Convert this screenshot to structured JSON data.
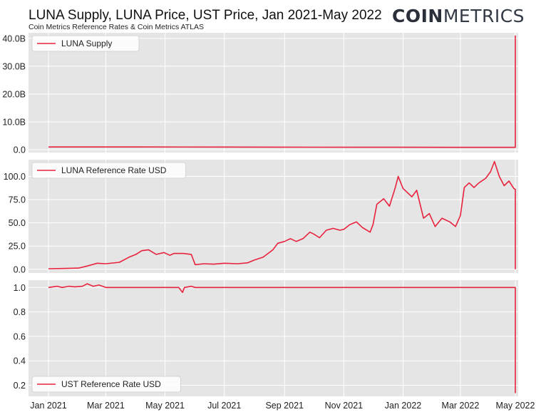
{
  "header": {
    "title": "LUNA Supply, LUNA Price, UST Price, Jan 2021-May 2022",
    "subtitle": "Coin Metrics Reference Rates & Coin Metrics ATLAS",
    "logo_bold": "COIN",
    "logo_light": "METRICS"
  },
  "colors": {
    "series": "#e8223d",
    "panel_bg": "#e5e5e5",
    "grid": "#ffffff",
    "text": "#222222"
  },
  "chart_data": {
    "type": "line",
    "x_range": [
      "2021-01-01",
      "2022-05-20"
    ],
    "x_ticks": [
      {
        "date": "2021-01-01",
        "label": "Jan 2021"
      },
      {
        "date": "2021-03-01",
        "label": "Mar 2021"
      },
      {
        "date": "2021-05-01",
        "label": "May 2021"
      },
      {
        "date": "2021-07-01",
        "label": "Jul 2021"
      },
      {
        "date": "2021-09-01",
        "label": "Sep 2021"
      },
      {
        "date": "2021-11-01",
        "label": "Nov 2021"
      },
      {
        "date": "2022-01-01",
        "label": "Jan 2022"
      },
      {
        "date": "2022-03-01",
        "label": "Mar 2022"
      },
      {
        "date": "2022-05-01",
        "label": "May 2022"
      }
    ],
    "grid": true,
    "panels": [
      {
        "series_name": "LUNA Supply",
        "legend_position": "top-left",
        "ylim": [
          -1000000000,
          42000000000
        ],
        "yticks": [
          {
            "value": 0,
            "label": "0.0"
          },
          {
            "value": 10000000000,
            "label": "10.0B"
          },
          {
            "value": 20000000000,
            "label": "20.0B"
          },
          {
            "value": 30000000000,
            "label": "30.0B"
          },
          {
            "value": 40000000000,
            "label": "40.0B"
          }
        ],
        "points": [
          [
            "2021-01-01",
            1000000000
          ],
          [
            "2021-04-01",
            990000000
          ],
          [
            "2021-07-01",
            960000000
          ],
          [
            "2021-10-01",
            930000000
          ],
          [
            "2022-01-01",
            900000000
          ],
          [
            "2022-03-01",
            870000000
          ],
          [
            "2022-04-01",
            860000000
          ],
          [
            "2022-05-01",
            860000000
          ],
          [
            "2022-05-08",
            870000000
          ],
          [
            "2022-05-10",
            1000000000
          ],
          [
            "2022-05-11",
            2500000000
          ],
          [
            "2022-05-12",
            6000000000
          ],
          [
            "2022-05-13",
            41000000000
          ]
        ]
      },
      {
        "series_name": "LUNA Reference Rate USD",
        "legend_position": "top-left",
        "ylim": [
          -4,
          118
        ],
        "yticks": [
          {
            "value": 0,
            "label": "0.0"
          },
          {
            "value": 25,
            "label": "25.0"
          },
          {
            "value": 50,
            "label": "50.0"
          },
          {
            "value": 75,
            "label": "75.0"
          },
          {
            "value": 100,
            "label": "100.0"
          }
        ],
        "points": [
          [
            "2021-01-01",
            0.6
          ],
          [
            "2021-01-15",
            0.8
          ],
          [
            "2021-02-01",
            1.3
          ],
          [
            "2021-02-10",
            3.5
          ],
          [
            "2021-02-20",
            6.5
          ],
          [
            "2021-03-01",
            6
          ],
          [
            "2021-03-15",
            7.5
          ],
          [
            "2021-03-25",
            13
          ],
          [
            "2021-04-01",
            16
          ],
          [
            "2021-04-07",
            20
          ],
          [
            "2021-04-14",
            21
          ],
          [
            "2021-04-22",
            16
          ],
          [
            "2021-04-30",
            18
          ],
          [
            "2021-05-06",
            15
          ],
          [
            "2021-05-10",
            17
          ],
          [
            "2021-05-20",
            17
          ],
          [
            "2021-05-28",
            16
          ],
          [
            "2021-06-01",
            5
          ],
          [
            "2021-06-10",
            6
          ],
          [
            "2021-06-20",
            5.5
          ],
          [
            "2021-07-01",
            6.5
          ],
          [
            "2021-07-15",
            6
          ],
          [
            "2021-07-25",
            7
          ],
          [
            "2021-08-01",
            10
          ],
          [
            "2021-08-10",
            13
          ],
          [
            "2021-08-20",
            21
          ],
          [
            "2021-08-25",
            28
          ],
          [
            "2021-09-01",
            30
          ],
          [
            "2021-09-07",
            33
          ],
          [
            "2021-09-13",
            30
          ],
          [
            "2021-09-20",
            33
          ],
          [
            "2021-09-27",
            40
          ],
          [
            "2021-10-01",
            38
          ],
          [
            "2021-10-07",
            34
          ],
          [
            "2021-10-14",
            42
          ],
          [
            "2021-10-21",
            44
          ],
          [
            "2021-10-28",
            42
          ],
          [
            "2021-11-01",
            43
          ],
          [
            "2021-11-07",
            48
          ],
          [
            "2021-11-14",
            51
          ],
          [
            "2021-11-20",
            45
          ],
          [
            "2021-11-28",
            40
          ],
          [
            "2021-12-01",
            48
          ],
          [
            "2021-12-05",
            70
          ],
          [
            "2021-12-12",
            76
          ],
          [
            "2021-12-18",
            68
          ],
          [
            "2021-12-24",
            88
          ],
          [
            "2021-12-27",
            100
          ],
          [
            "2022-01-01",
            87
          ],
          [
            "2022-01-10",
            78
          ],
          [
            "2022-01-15",
            85
          ],
          [
            "2022-01-22",
            55
          ],
          [
            "2022-01-28",
            60
          ],
          [
            "2022-02-03",
            46
          ],
          [
            "2022-02-10",
            55
          ],
          [
            "2022-02-18",
            51
          ],
          [
            "2022-02-24",
            46
          ],
          [
            "2022-03-01",
            58
          ],
          [
            "2022-03-05",
            88
          ],
          [
            "2022-03-10",
            93
          ],
          [
            "2022-03-15",
            88
          ],
          [
            "2022-03-20",
            93
          ],
          [
            "2022-03-27",
            98
          ],
          [
            "2022-04-01",
            105
          ],
          [
            "2022-04-05",
            116
          ],
          [
            "2022-04-10",
            100
          ],
          [
            "2022-04-15",
            90
          ],
          [
            "2022-04-20",
            95
          ],
          [
            "2022-04-25",
            87
          ],
          [
            "2022-04-30",
            86
          ],
          [
            "2022-05-04",
            82
          ],
          [
            "2022-05-07",
            74
          ],
          [
            "2022-05-09",
            30
          ],
          [
            "2022-05-11",
            3
          ],
          [
            "2022-05-13",
            0.1
          ],
          [
            "2022-05-16",
            0.1
          ]
        ]
      },
      {
        "series_name": "UST Reference Rate USD",
        "legend_position": "bottom-left",
        "ylim": [
          0.11,
          1.06
        ],
        "yticks": [
          {
            "value": 0.2,
            "label": "0.2"
          },
          {
            "value": 0.4,
            "label": "0.4"
          },
          {
            "value": 0.6,
            "label": "0.6"
          },
          {
            "value": 0.8,
            "label": "0.8"
          },
          {
            "value": 1.0,
            "label": "1.0"
          }
        ],
        "points": [
          [
            "2021-01-01",
            1.0
          ],
          [
            "2021-01-10",
            1.01
          ],
          [
            "2021-01-15",
            1.0
          ],
          [
            "2021-01-22",
            1.01
          ],
          [
            "2021-01-28",
            1.005
          ],
          [
            "2021-02-05",
            1.01
          ],
          [
            "2021-02-10",
            1.03
          ],
          [
            "2021-02-16",
            1.01
          ],
          [
            "2021-02-22",
            1.02
          ],
          [
            "2021-03-01",
            1.0
          ],
          [
            "2021-04-01",
            1.0
          ],
          [
            "2021-05-15",
            1.0
          ],
          [
            "2021-05-19",
            0.96
          ],
          [
            "2021-05-21",
            1.0
          ],
          [
            "2021-05-28",
            1.01
          ],
          [
            "2021-06-01",
            1.0
          ],
          [
            "2021-08-01",
            1.0
          ],
          [
            "2021-10-01",
            1.0
          ],
          [
            "2021-12-01",
            1.0
          ],
          [
            "2022-02-01",
            1.0
          ],
          [
            "2022-04-01",
            1.0
          ],
          [
            "2022-05-07",
            1.0
          ],
          [
            "2022-05-08",
            0.99
          ],
          [
            "2022-05-09",
            0.8
          ],
          [
            "2022-05-10",
            0.75
          ],
          [
            "2022-05-11",
            0.6
          ],
          [
            "2022-05-12",
            0.3
          ],
          [
            "2022-05-13",
            0.14
          ],
          [
            "2022-05-14",
            0.18
          ],
          [
            "2022-05-15",
            0.15
          ],
          [
            "2022-05-16",
            0.17
          ]
        ]
      }
    ]
  }
}
